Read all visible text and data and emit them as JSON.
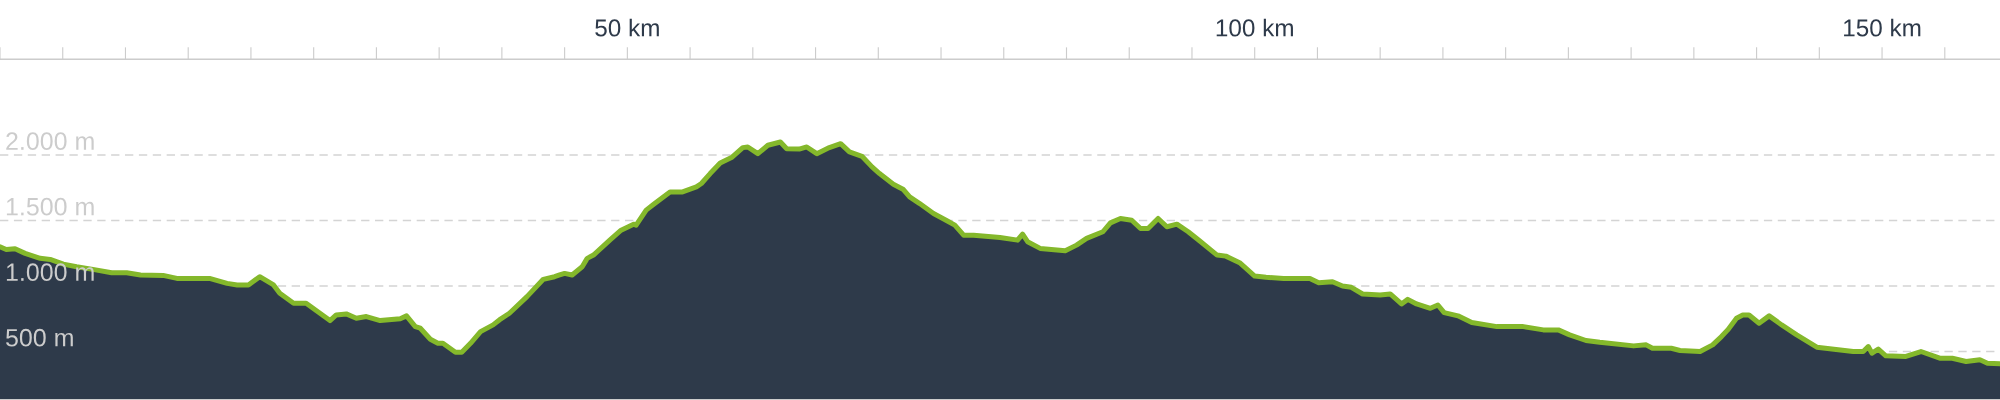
{
  "chart_data": {
    "type": "area",
    "x": [
      0,
      0.5,
      1.2,
      2.0,
      3.2,
      4.0,
      5.05,
      6.1,
      7.4,
      8.9,
      10.1,
      11.2,
      13.0,
      14.1,
      16.7,
      18.1,
      18.9,
      19.8,
      20.7,
      21.8,
      22.3,
      23.4,
      24.4,
      25.5,
      26.3,
      26.8,
      27.6,
      28.4,
      29.2,
      30.3,
      31.9,
      32.4,
      33.1,
      33.5,
      34.3,
      34.9,
      35.3,
      36.3,
      36.8,
      37.5,
      38.3,
      39.3,
      39.8,
      40.6,
      42.0,
      43.3,
      44.2,
      44.6,
      45.0,
      45.6,
      46.4,
      46.8,
      47.3,
      48.6,
      49.5,
      50.5,
      50.7,
      51.5,
      52.1,
      53.4,
      54.4,
      55.5,
      55.9,
      56.6,
      57.4,
      58.3,
      59.2,
      59.6,
      60.4,
      61.2,
      62.2,
      62.7,
      63.7,
      64.3,
      65.1,
      66.1,
      67.0,
      67.7,
      68.7,
      69.5,
      70.1,
      71.2,
      72.0,
      72.5,
      73.3,
      74.4,
      75.4,
      76.1,
      76.8,
      77.6,
      79.7,
      81.1,
      81.5,
      81.9,
      82.9,
      84.9,
      85.8,
      86.6,
      87.9,
      88.5,
      89.3,
      90.2,
      90.9,
      91.5,
      92.3,
      93.0,
      93.8,
      94.7,
      95.6,
      97.0,
      97.7,
      98.8,
      100.0,
      100.9,
      102.3,
      104.4,
      105.1,
      106.2,
      107.0,
      107.7,
      108.6,
      110.0,
      110.8,
      111.7,
      112.2,
      112.9,
      114.0,
      114.6,
      115.1,
      116.2,
      117.3,
      119.3,
      121.4,
      123.0,
      124.2,
      125.1,
      126.4,
      127.5,
      130.2,
      131.2,
      131.7,
      133.2,
      133.9,
      135.5,
      136.5,
      137.2,
      137.7,
      138.4,
      138.9,
      139.4,
      140.2,
      141.0,
      142.0,
      143.2,
      144.8,
      147.7,
      148.5,
      148.9,
      149.2,
      149.7,
      150.3,
      151.9,
      153.1,
      154.6,
      155.6,
      156.7,
      157.8,
      158.4,
      159.4
    ],
    "series": [
      {
        "color": "#2e3a4a",
        "values": [
          1299,
          1279,
          1284,
          1249,
          1211,
          1203,
          1167,
          1147,
          1127,
          1101,
          1101,
          1084,
          1081,
          1058,
          1058,
          1020,
          1008,
          1008,
          1071,
          1008,
          944,
          868,
          868,
          792,
          736,
          779,
          787,
          754,
          767,
          736,
          750,
          772,
          690,
          678,
          594,
          563,
          563,
          495,
          495,
          563,
          652,
          703,
          741,
          792,
          919,
          1051,
          1071,
          1084,
          1096,
          1084,
          1147,
          1211,
          1236,
          1350,
          1426,
          1472,
          1464,
          1579,
          1624,
          1718,
          1718,
          1756,
          1782,
          1858,
          1939,
          1980,
          2056,
          2061,
          2010,
          2074,
          2099,
          2048,
          2045,
          2061,
          2010,
          2056,
          2086,
          2023,
          1990,
          1909,
          1858,
          1777,
          1736,
          1680,
          1629,
          1553,
          1502,
          1464,
          1388,
          1388,
          1370,
          1350,
          1396,
          1338,
          1287,
          1269,
          1312,
          1363,
          1414,
          1482,
          1515,
          1502,
          1439,
          1439,
          1515,
          1452,
          1472,
          1414,
          1345,
          1236,
          1228,
          1178,
          1076,
          1066,
          1058,
          1058,
          1025,
          1033,
          1000,
          990,
          939,
          931,
          939,
          863,
          898,
          863,
          830,
          855,
          797,
          772,
          721,
          690,
          690,
          665,
          665,
          627,
          584,
          570,
          543,
          551,
          525,
          525,
          508,
          500,
          551,
          614,
          665,
          754,
          779,
          779,
          716,
          772,
          703,
          627,
          533,
          500,
          500,
          538,
          487,
          518,
          467,
          462,
          500,
          449,
          449,
          424,
          437,
          411,
          406
        ]
      }
    ],
    "xlim": [
      0,
      159.4
    ],
    "xticks": [
      {
        "value": 0,
        "label": null
      },
      {
        "value": 5,
        "label": null
      },
      {
        "value": 10,
        "label": null
      },
      {
        "value": 15,
        "label": null
      },
      {
        "value": 20,
        "label": null
      },
      {
        "value": 25,
        "label": null
      },
      {
        "value": 30,
        "label": null
      },
      {
        "value": 35,
        "label": null
      },
      {
        "value": 40,
        "label": null
      },
      {
        "value": 45,
        "label": null
      },
      {
        "value": 50,
        "label": "50 km"
      },
      {
        "value": 55,
        "label": null
      },
      {
        "value": 60,
        "label": null
      },
      {
        "value": 65,
        "label": null
      },
      {
        "value": 70,
        "label": null
      },
      {
        "value": 75,
        "label": null
      },
      {
        "value": 80,
        "label": null
      },
      {
        "value": 85,
        "label": null
      },
      {
        "value": 90,
        "label": null
      },
      {
        "value": 95,
        "label": null
      },
      {
        "value": 100,
        "label": "100 km"
      },
      {
        "value": 105,
        "label": null
      },
      {
        "value": 110,
        "label": null
      },
      {
        "value": 115,
        "label": null
      },
      {
        "value": 120,
        "label": null
      },
      {
        "value": 125,
        "label": null
      },
      {
        "value": 130,
        "label": null
      },
      {
        "value": 135,
        "label": null
      },
      {
        "value": 140,
        "label": null
      },
      {
        "value": 145,
        "label": null
      },
      {
        "value": 150,
        "label": "150 km"
      },
      {
        "value": 155,
        "label": null
      }
    ],
    "ylim": [
      130,
      2730
    ],
    "yticks": [
      {
        "value": 500,
        "label": "500 m"
      },
      {
        "value": 1000,
        "label": "1.000 m"
      },
      {
        "value": 1500,
        "label": "1.500 m"
      },
      {
        "value": 2000,
        "label": "2.000 m"
      }
    ],
    "grid": "y"
  }
}
